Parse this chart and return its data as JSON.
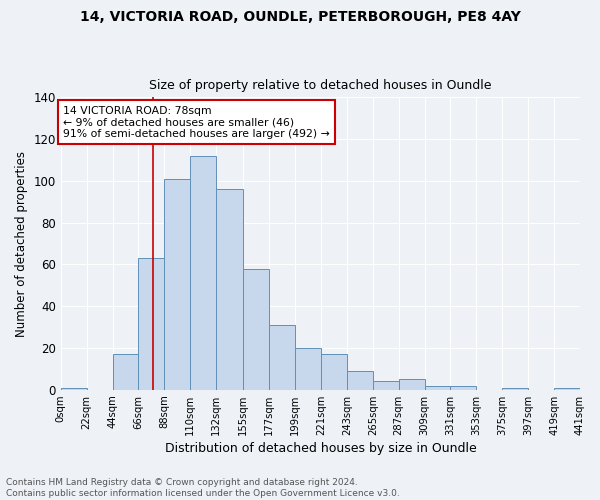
{
  "title1": "14, VICTORIA ROAD, OUNDLE, PETERBOROUGH, PE8 4AY",
  "title2": "Size of property relative to detached houses in Oundle",
  "xlabel": "Distribution of detached houses by size in Oundle",
  "ylabel": "Number of detached properties",
  "bin_edges": [
    0,
    22,
    44,
    66,
    88,
    110,
    132,
    155,
    177,
    199,
    221,
    243,
    265,
    287,
    309,
    331,
    353,
    375,
    397,
    419,
    441
  ],
  "bin_labels": [
    "0sqm",
    "22sqm",
    "44sqm",
    "66sqm",
    "88sqm",
    "110sqm",
    "132sqm",
    "155sqm",
    "177sqm",
    "199sqm",
    "221sqm",
    "243sqm",
    "265sqm",
    "287sqm",
    "309sqm",
    "331sqm",
    "353sqm",
    "375sqm",
    "397sqm",
    "419sqm",
    "441sqm"
  ],
  "counts": [
    1,
    0,
    17,
    63,
    101,
    112,
    96,
    58,
    31,
    20,
    17,
    9,
    4,
    5,
    2,
    2,
    0,
    1,
    0,
    1
  ],
  "bar_color": "#c8d8ec",
  "bar_edge_color": "#6090b8",
  "vline_x": 78,
  "vline_color": "#cc0000",
  "annotation_line1": "14 VICTORIA ROAD: 78sqm",
  "annotation_line2": "← 9% of detached houses are smaller (46)",
  "annotation_line3": "91% of semi-detached houses are larger (492) →",
  "annotation_box_color": "#cc0000",
  "annotation_bg": "#ffffff",
  "ylim": [
    0,
    140
  ],
  "yticks": [
    0,
    20,
    40,
    60,
    80,
    100,
    120,
    140
  ],
  "footer1": "Contains HM Land Registry data © Crown copyright and database right 2024.",
  "footer2": "Contains public sector information licensed under the Open Government Licence v3.0.",
  "bg_color": "#eef2f7",
  "grid_color": "#ffffff",
  "title1_fontsize": 10,
  "title2_fontsize": 9
}
